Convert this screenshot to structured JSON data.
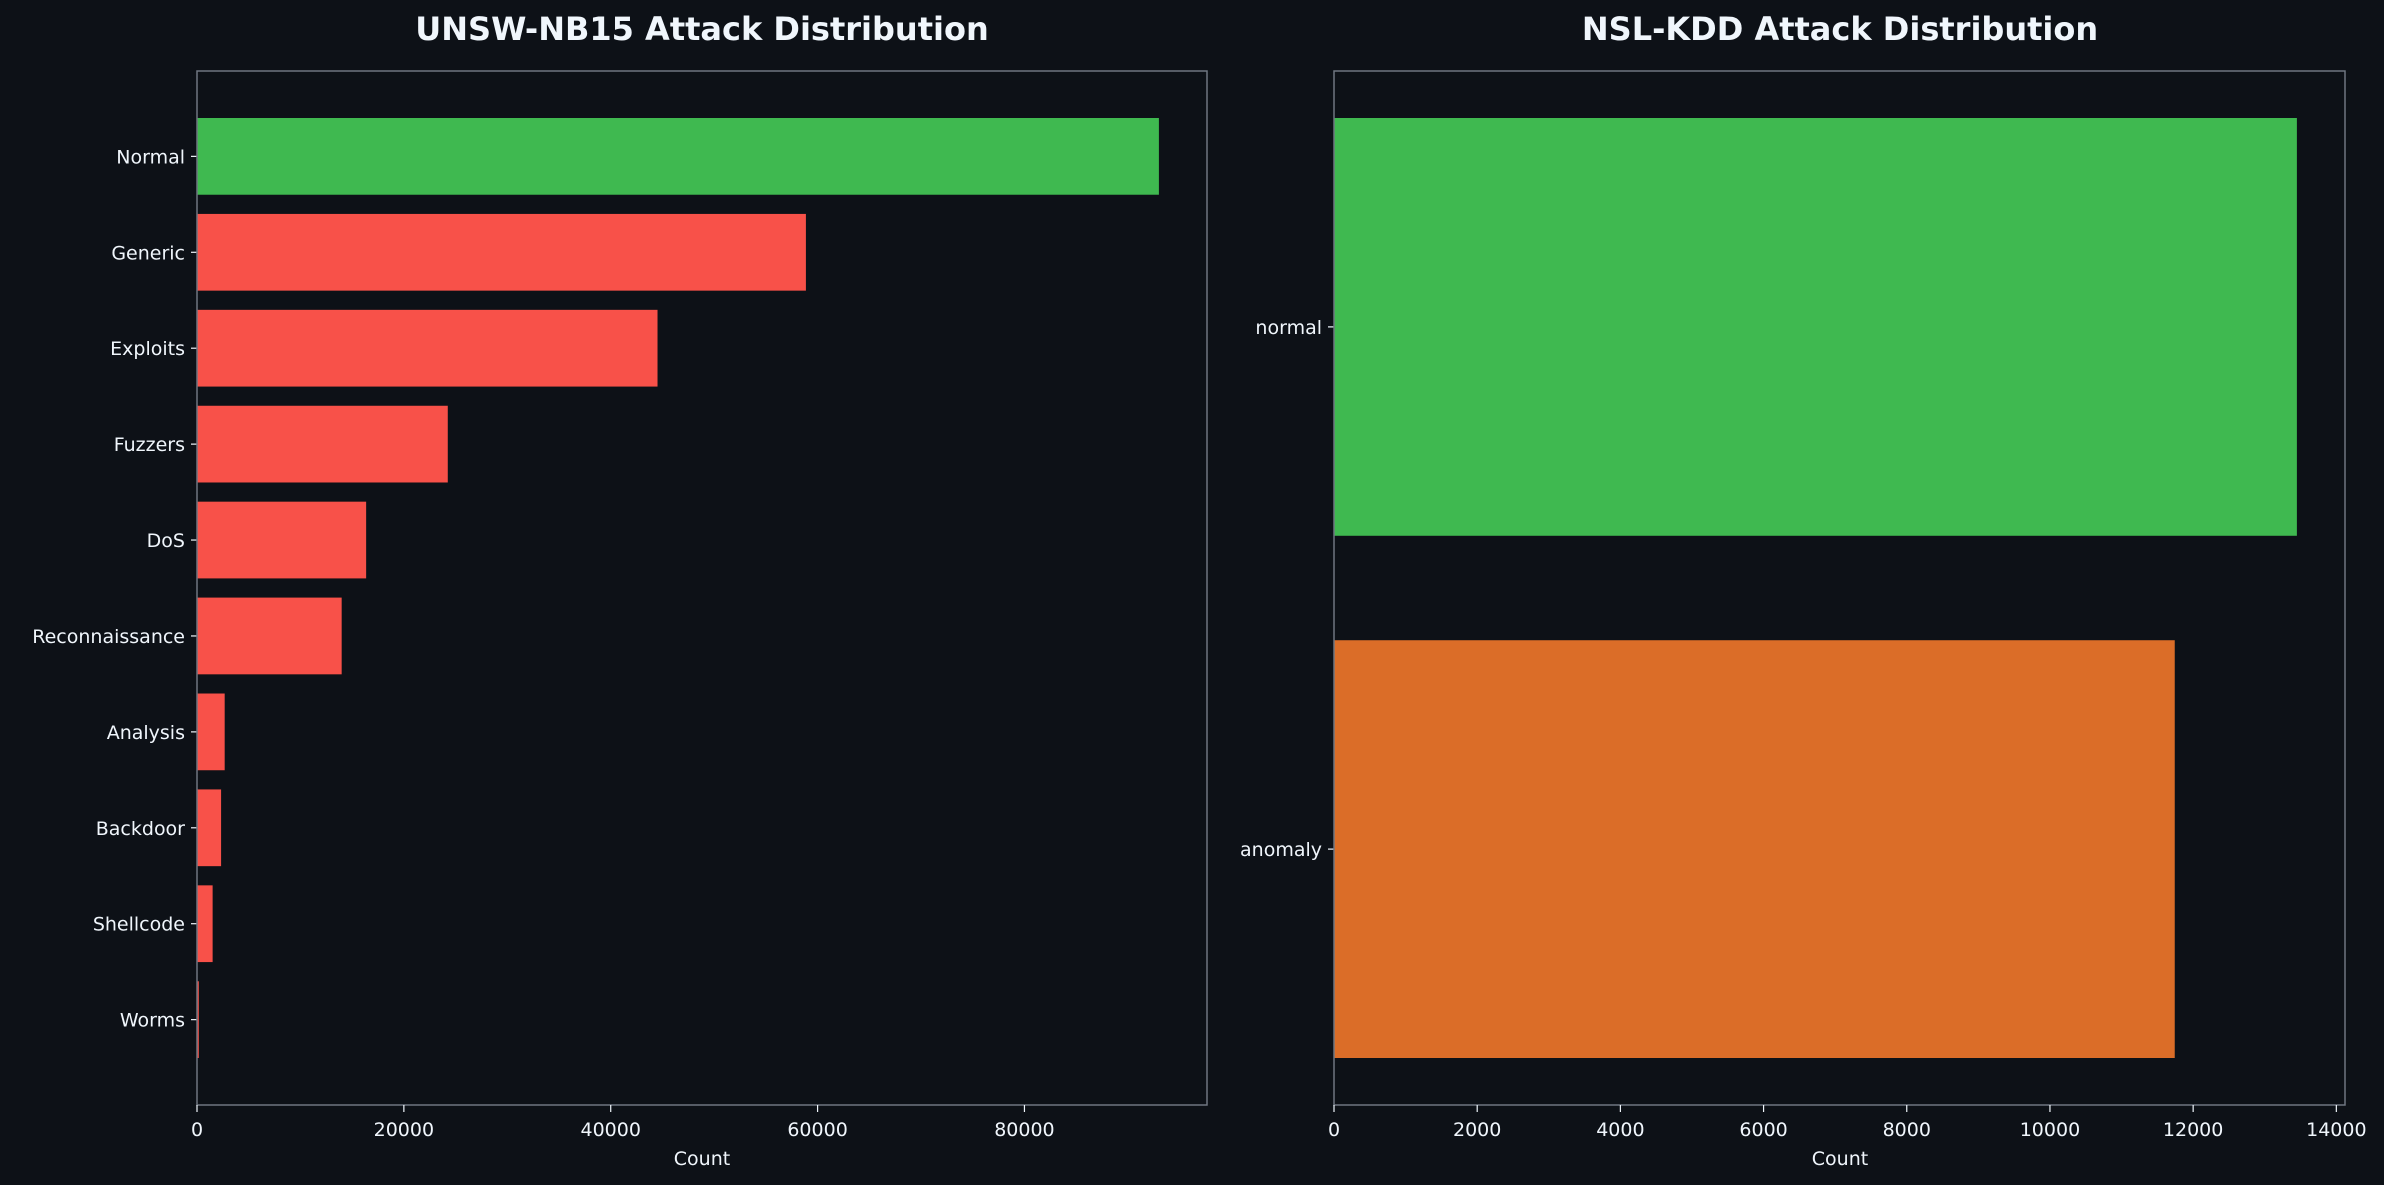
{
  "chart_data": [
    {
      "type": "bar",
      "orientation": "horizontal",
      "title": "UNSW-NB15 Attack Distribution",
      "xlabel": "Count",
      "ylabel": "",
      "categories": [
        "Normal",
        "Generic",
        "Exploits",
        "Fuzzers",
        "DoS",
        "Reconnaissance",
        "Analysis",
        "Backdoor",
        "Shellcode",
        "Worms"
      ],
      "values": [
        93000,
        58871,
        44525,
        24246,
        16353,
        13987,
        2677,
        2329,
        1511,
        174
      ],
      "colors": [
        "#3fb950",
        "#f85149",
        "#f85149",
        "#f85149",
        "#f85149",
        "#f85149",
        "#f85149",
        "#f85149",
        "#f85149",
        "#f85149"
      ],
      "xlim": [
        0,
        97650
      ],
      "xticks": [
        0,
        20000,
        40000,
        60000,
        80000
      ],
      "grid": false
    },
    {
      "type": "bar",
      "orientation": "horizontal",
      "title": "NSL-KDD Attack Distribution",
      "xlabel": "Count",
      "ylabel": "",
      "categories": [
        "normal",
        "anomaly"
      ],
      "values": [
        13449,
        11743
      ],
      "colors": [
        "#3fb950",
        "#db6d28"
      ],
      "xlim": [
        0,
        14121
      ],
      "xticks": [
        0,
        2000,
        4000,
        6000,
        8000,
        10000,
        12000,
        14000
      ],
      "grid": false
    }
  ],
  "theme": {
    "background": "#0d1117",
    "text": "#f0f6fc",
    "spine": "#6e7681"
  }
}
